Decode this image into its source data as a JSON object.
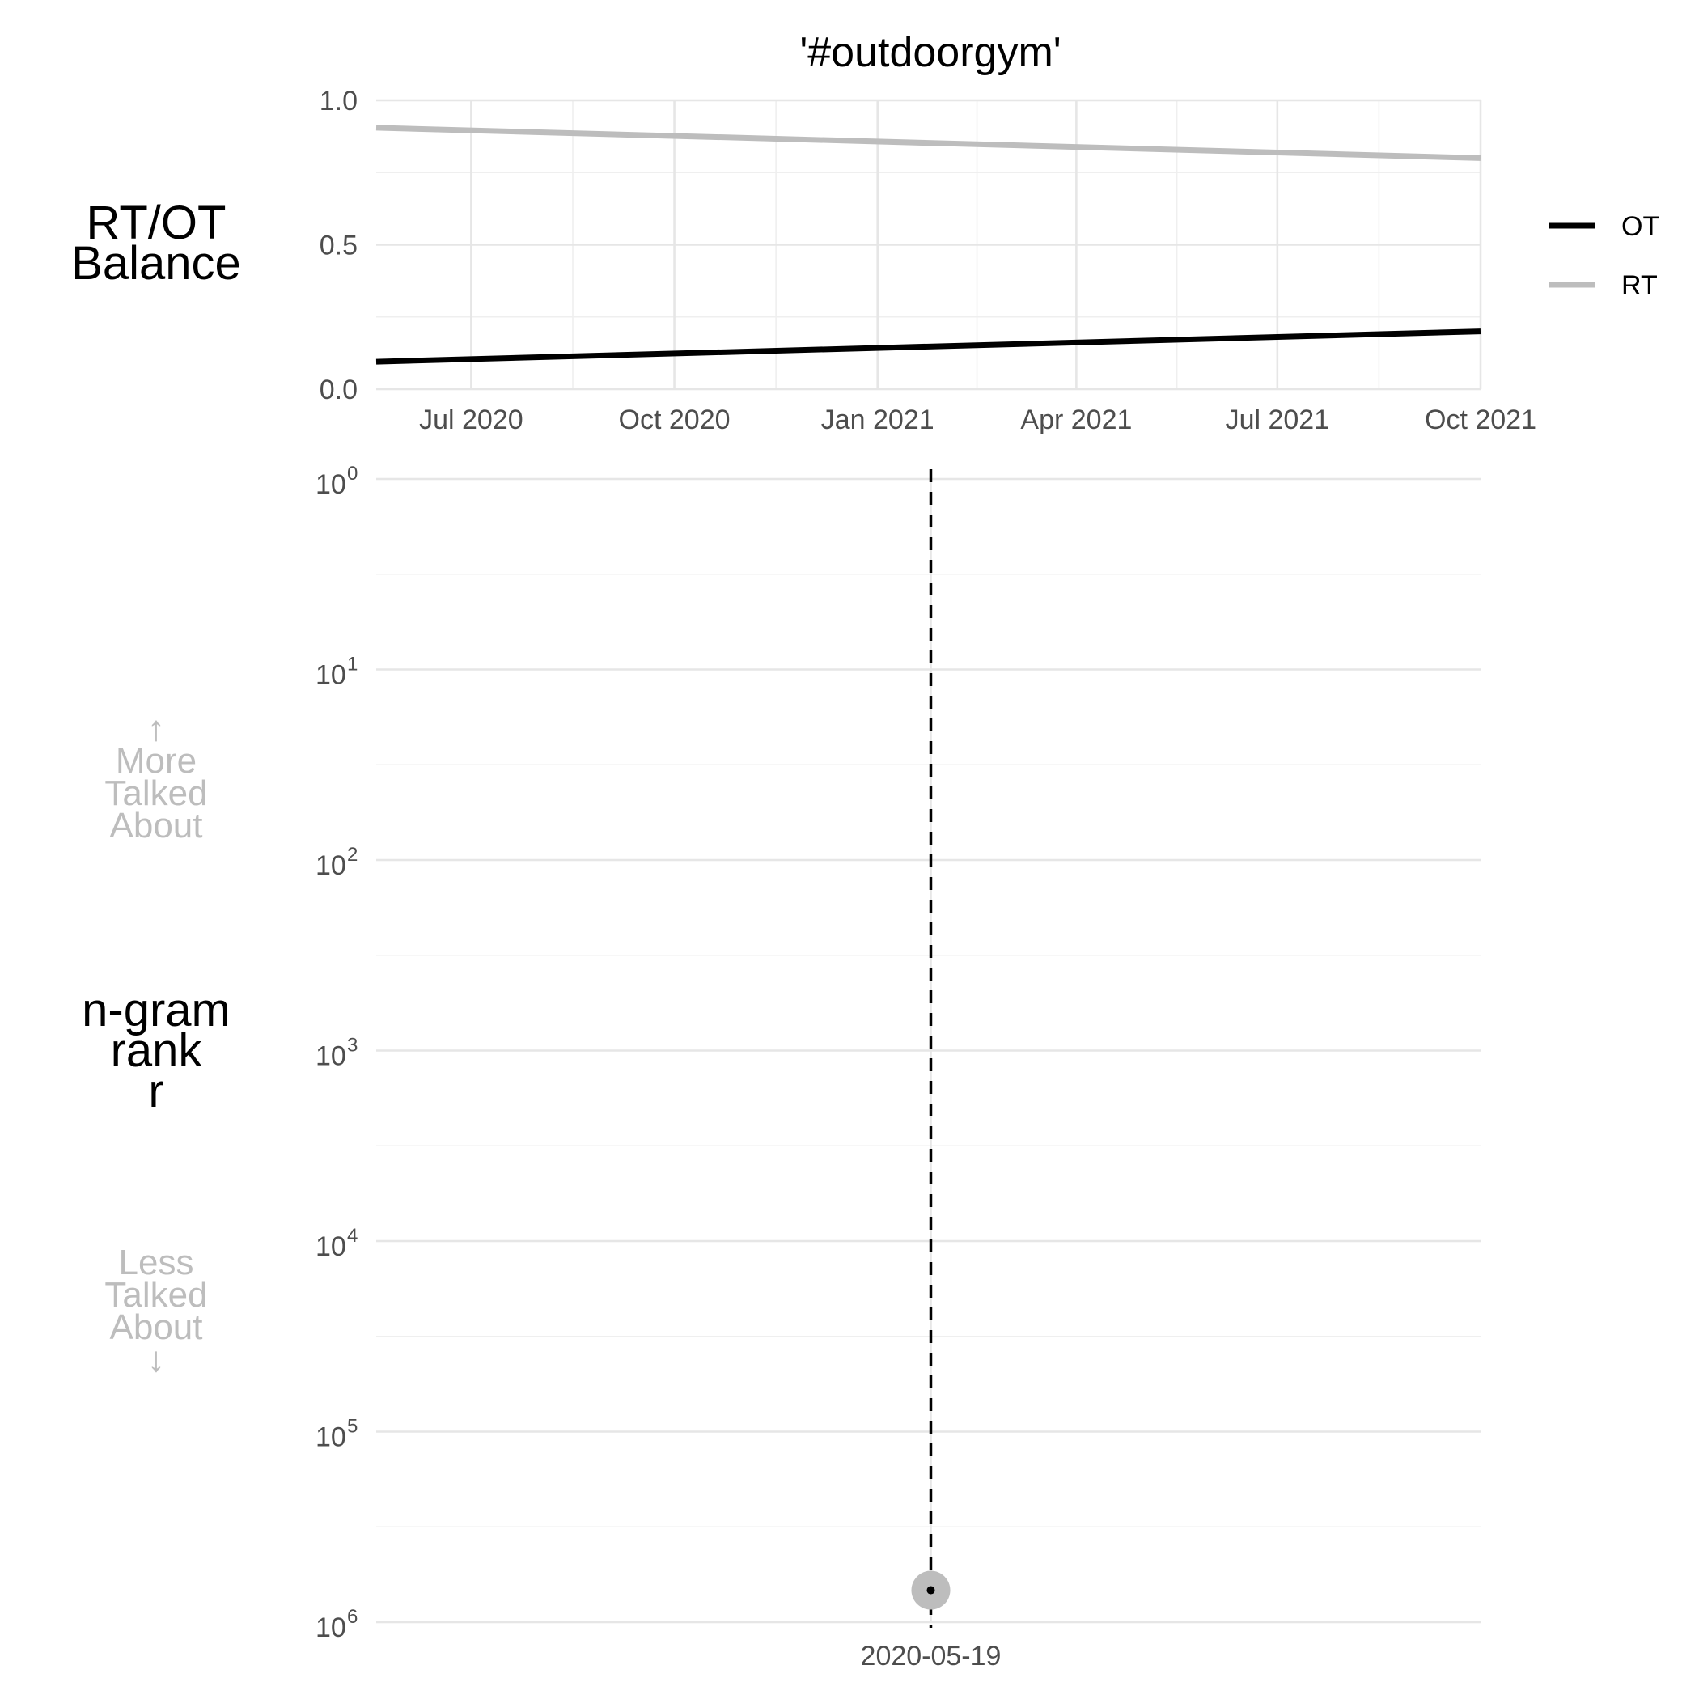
{
  "chart_data": [
    {
      "type": "line",
      "title": "'#outdoorgym'",
      "ylabel_lines": [
        "RT/OT",
        "Balance"
      ],
      "ylim": [
        0.0,
        1.0
      ],
      "yticks": [
        {
          "value": 0.0,
          "label": "0.0"
        },
        {
          "value": 0.5,
          "label": "0.5"
        },
        {
          "value": 1.0,
          "label": "1.0"
        }
      ],
      "xlim": [
        "2020-05-19",
        "2021-10-01"
      ],
      "xticks": [
        {
          "date": "2020-07-01",
          "label": "Jul 2020"
        },
        {
          "date": "2020-10-01",
          "label": "Oct 2020"
        },
        {
          "date": "2021-01-01",
          "label": "Jan 2021"
        },
        {
          "date": "2021-04-01",
          "label": "Apr 2021"
        },
        {
          "date": "2021-07-01",
          "label": "Jul 2021"
        },
        {
          "date": "2021-10-01",
          "label": "Oct 2021"
        }
      ],
      "grid": true,
      "legend_position": "right",
      "series": [
        {
          "name": "OT",
          "color": "#000000",
          "points": [
            {
              "x": "2020-05-19",
              "y": 0.095
            },
            {
              "x": "2021-10-01",
              "y": 0.2
            }
          ]
        },
        {
          "name": "RT",
          "color": "#bdbdbd",
          "points": [
            {
              "x": "2020-05-19",
              "y": 0.905
            },
            {
              "x": "2021-10-01",
              "y": 0.8
            }
          ]
        }
      ]
    },
    {
      "type": "scatter",
      "ylabel_lines": [
        "n-gram",
        "rank",
        "r"
      ],
      "yscale": "log10",
      "y_reversed": true,
      "yticks": [
        {
          "value": 1,
          "base": "10",
          "exp": "0"
        },
        {
          "value": 10,
          "base": "10",
          "exp": "1"
        },
        {
          "value": 100,
          "base": "10",
          "exp": "2"
        },
        {
          "value": 1000,
          "base": "10",
          "exp": "3"
        },
        {
          "value": 10000,
          "base": "10",
          "exp": "4"
        },
        {
          "value": 100000,
          "base": "10",
          "exp": "5"
        },
        {
          "value": 1000000,
          "base": "10",
          "exp": "6"
        }
      ],
      "more_label_lines": [
        "↑",
        "More",
        "Talked",
        "About"
      ],
      "less_label_lines": [
        "Less",
        "Talked",
        "About",
        "↓"
      ],
      "xticks": [
        {
          "date": "2020-05-19",
          "label": "2020-05-19"
        }
      ],
      "reference_line": {
        "x": "2020-05-19",
        "style": "dashed",
        "color": "#000000"
      },
      "points": [
        {
          "x": "2020-05-19",
          "rank": 680000,
          "color": "#bdbdbd"
        }
      ]
    }
  ]
}
